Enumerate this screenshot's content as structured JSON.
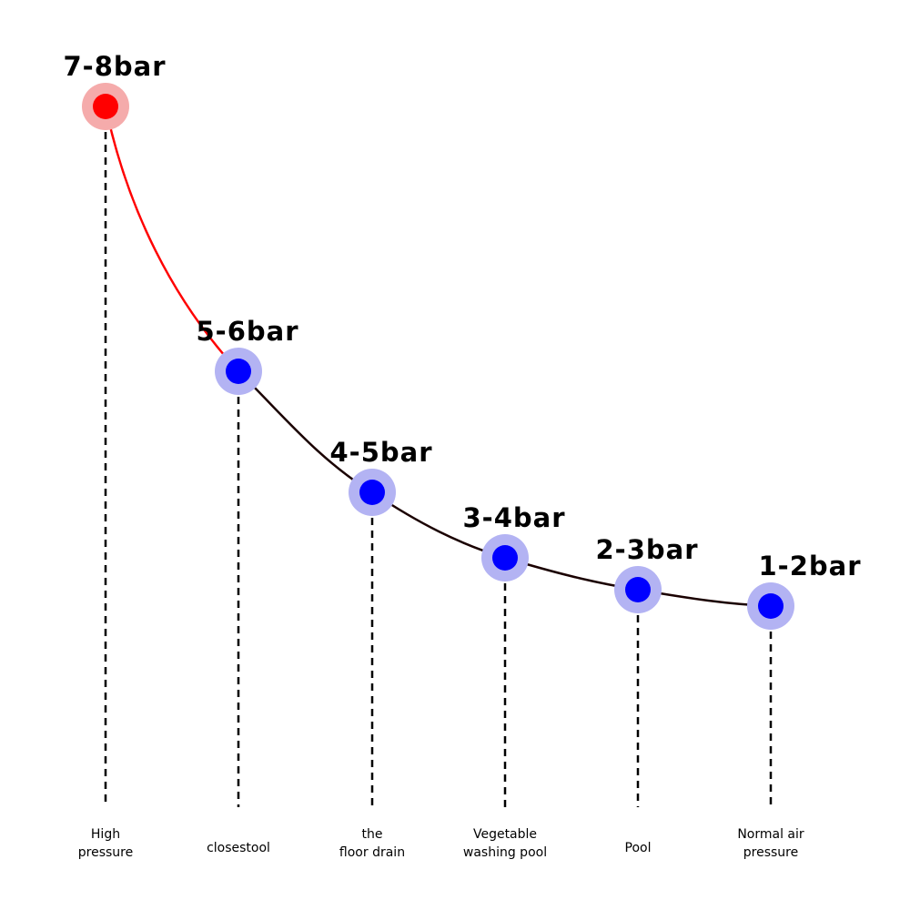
{
  "nodes": [
    {
      "label": "7-8bar",
      "caption": [
        "High",
        "pressure"
      ]
    },
    {
      "label": "5-6bar",
      "caption": [
        "closestool"
      ]
    },
    {
      "label": "4-5bar",
      "caption": [
        "the",
        "floor drain"
      ]
    },
    {
      "label": "3-4bar",
      "caption": [
        "Vegetable",
        "washing pool"
      ]
    },
    {
      "label": "2-3bar",
      "caption": [
        "Pool"
      ]
    },
    {
      "label": "1-2bar",
      "caption": [
        "Normal air",
        "pressure"
      ]
    }
  ]
}
